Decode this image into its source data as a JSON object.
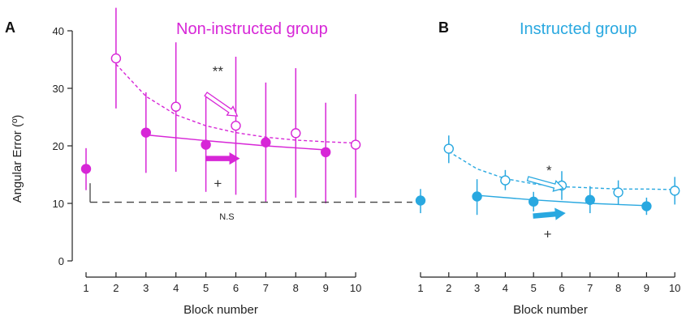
{
  "chart_data": [
    {
      "type": "scatter",
      "panel": "A",
      "title": "Non-instructed group",
      "ylabel": "Angular Error (º)",
      "xlabel": "Block number",
      "ylim": [
        0,
        40
      ],
      "yticks": [
        0,
        10,
        20,
        30,
        40
      ],
      "xticks": [
        1,
        2,
        3,
        4,
        5,
        6,
        7,
        8,
        9,
        10
      ],
      "color": "#d726d7",
      "series": [
        {
          "style": "open-dashed",
          "points": [
            {
              "x": 2,
              "y": 35.2,
              "lo": 26.5,
              "hi": 44
            },
            {
              "x": 4,
              "y": 26.8,
              "lo": 15.5,
              "hi": 38
            },
            {
              "x": 6,
              "y": 23.5,
              "lo": 11.5,
              "hi": 35.5
            },
            {
              "x": 8,
              "y": 22.2,
              "lo": 11,
              "hi": 33.5
            },
            {
              "x": 10,
              "y": 20.2,
              "lo": 11,
              "hi": 29
            }
          ],
          "fit": [
            {
              "x": 2,
              "y": 34.2
            },
            {
              "x": 3,
              "y": 28.6
            },
            {
              "x": 4,
              "y": 25.4
            },
            {
              "x": 5,
              "y": 23.5
            },
            {
              "x": 6,
              "y": 22.3
            },
            {
              "x": 7,
              "y": 21.5
            },
            {
              "x": 8,
              "y": 21.0
            },
            {
              "x": 9,
              "y": 20.7
            },
            {
              "x": 10,
              "y": 20.5
            }
          ]
        },
        {
          "style": "filled-solid",
          "points": [
            {
              "x": 3,
              "y": 22.3,
              "lo": 15.3,
              "hi": 29.3
            },
            {
              "x": 5,
              "y": 20.2,
              "lo": 12,
              "hi": 28.5
            },
            {
              "x": 7,
              "y": 20.6,
              "lo": 10.3,
              "hi": 31
            },
            {
              "x": 9,
              "y": 18.9,
              "lo": 10,
              "hi": 27.5
            }
          ],
          "fit": [
            {
              "x": 3,
              "y": 21.9
            },
            {
              "x": 5,
              "y": 20.9
            },
            {
              "x": 7,
              "y": 20.0
            },
            {
              "x": 9,
              "y": 19.3
            }
          ]
        },
        {
          "style": "filled-single",
          "points": [
            {
              "x": 1,
              "y": 16.0,
              "lo": 12.3,
              "hi": 19.6
            }
          ]
        }
      ],
      "annotations": [
        {
          "text": "**",
          "x": 5.4,
          "y": 33
        },
        {
          "text": "+",
          "x": 5.4,
          "y": 13.5
        },
        {
          "text": "N.S",
          "x": 5.7,
          "y": 8.0
        }
      ],
      "arrows": [
        {
          "style": "open",
          "from": [
            5.0,
            29.0
          ],
          "to": [
            6.05,
            25.2
          ]
        },
        {
          "style": "filled",
          "from": [
            5.0,
            17.8
          ],
          "to": [
            6.1,
            17.8
          ]
        }
      ]
    },
    {
      "type": "scatter",
      "panel": "B",
      "title": "Instructed group",
      "xlabel": "Block number",
      "ylim": [
        0,
        40
      ],
      "xticks": [
        1,
        2,
        3,
        4,
        5,
        6,
        7,
        8,
        9,
        10
      ],
      "color": "#29a8e0",
      "series": [
        {
          "style": "open-dashed",
          "points": [
            {
              "x": 2,
              "y": 19.5,
              "lo": 17,
              "hi": 21.8
            },
            {
              "x": 4,
              "y": 14.0,
              "lo": 12.3,
              "hi": 15.8
            },
            {
              "x": 6,
              "y": 13.1,
              "lo": 10.6,
              "hi": 15.6
            },
            {
              "x": 8,
              "y": 11.9,
              "lo": 9.8,
              "hi": 14.0
            },
            {
              "x": 10,
              "y": 12.2,
              "lo": 9.8,
              "hi": 14.6
            }
          ],
          "fit": [
            {
              "x": 2,
              "y": 19.0
            },
            {
              "x": 3,
              "y": 16.0
            },
            {
              "x": 4,
              "y": 14.3
            },
            {
              "x": 5,
              "y": 13.4
            },
            {
              "x": 6,
              "y": 12.9
            },
            {
              "x": 7,
              "y": 12.7
            },
            {
              "x": 8,
              "y": 12.5
            },
            {
              "x": 9,
              "y": 12.5
            },
            {
              "x": 10,
              "y": 12.4
            }
          ]
        },
        {
          "style": "filled-solid",
          "points": [
            {
              "x": 3,
              "y": 11.2,
              "lo": 8.0,
              "hi": 14.2
            },
            {
              "x": 5,
              "y": 10.3,
              "lo": 8.6,
              "hi": 12.0
            },
            {
              "x": 7,
              "y": 10.6,
              "lo": 8.3,
              "hi": 13.0
            },
            {
              "x": 9,
              "y": 9.5,
              "lo": 8.0,
              "hi": 11.0
            }
          ],
          "fit": [
            {
              "x": 3,
              "y": 11.4
            },
            {
              "x": 5,
              "y": 10.6
            },
            {
              "x": 7,
              "y": 10.0
            },
            {
              "x": 9,
              "y": 9.6
            }
          ]
        },
        {
          "style": "filled-single",
          "points": [
            {
              "x": 1,
              "y": 10.5,
              "lo": 8.3,
              "hi": 12.5
            }
          ]
        }
      ],
      "annotations": [
        {
          "text": "*",
          "x": 5.55,
          "y": 15.8
        },
        {
          "text": "+",
          "x": 5.5,
          "y": 4.7
        }
      ],
      "arrows": [
        {
          "style": "open",
          "from": [
            4.8,
            14.3
          ],
          "to": [
            6.05,
            12.6
          ]
        },
        {
          "style": "filled",
          "from": [
            5.0,
            7.8
          ],
          "to": [
            6.1,
            8.3
          ]
        }
      ]
    }
  ],
  "ns_comparison": {
    "from_panel": "A",
    "from_x": 1,
    "from_y": 13.5,
    "level_y": 10.2,
    "to_panel": "B",
    "to_x": 1
  }
}
